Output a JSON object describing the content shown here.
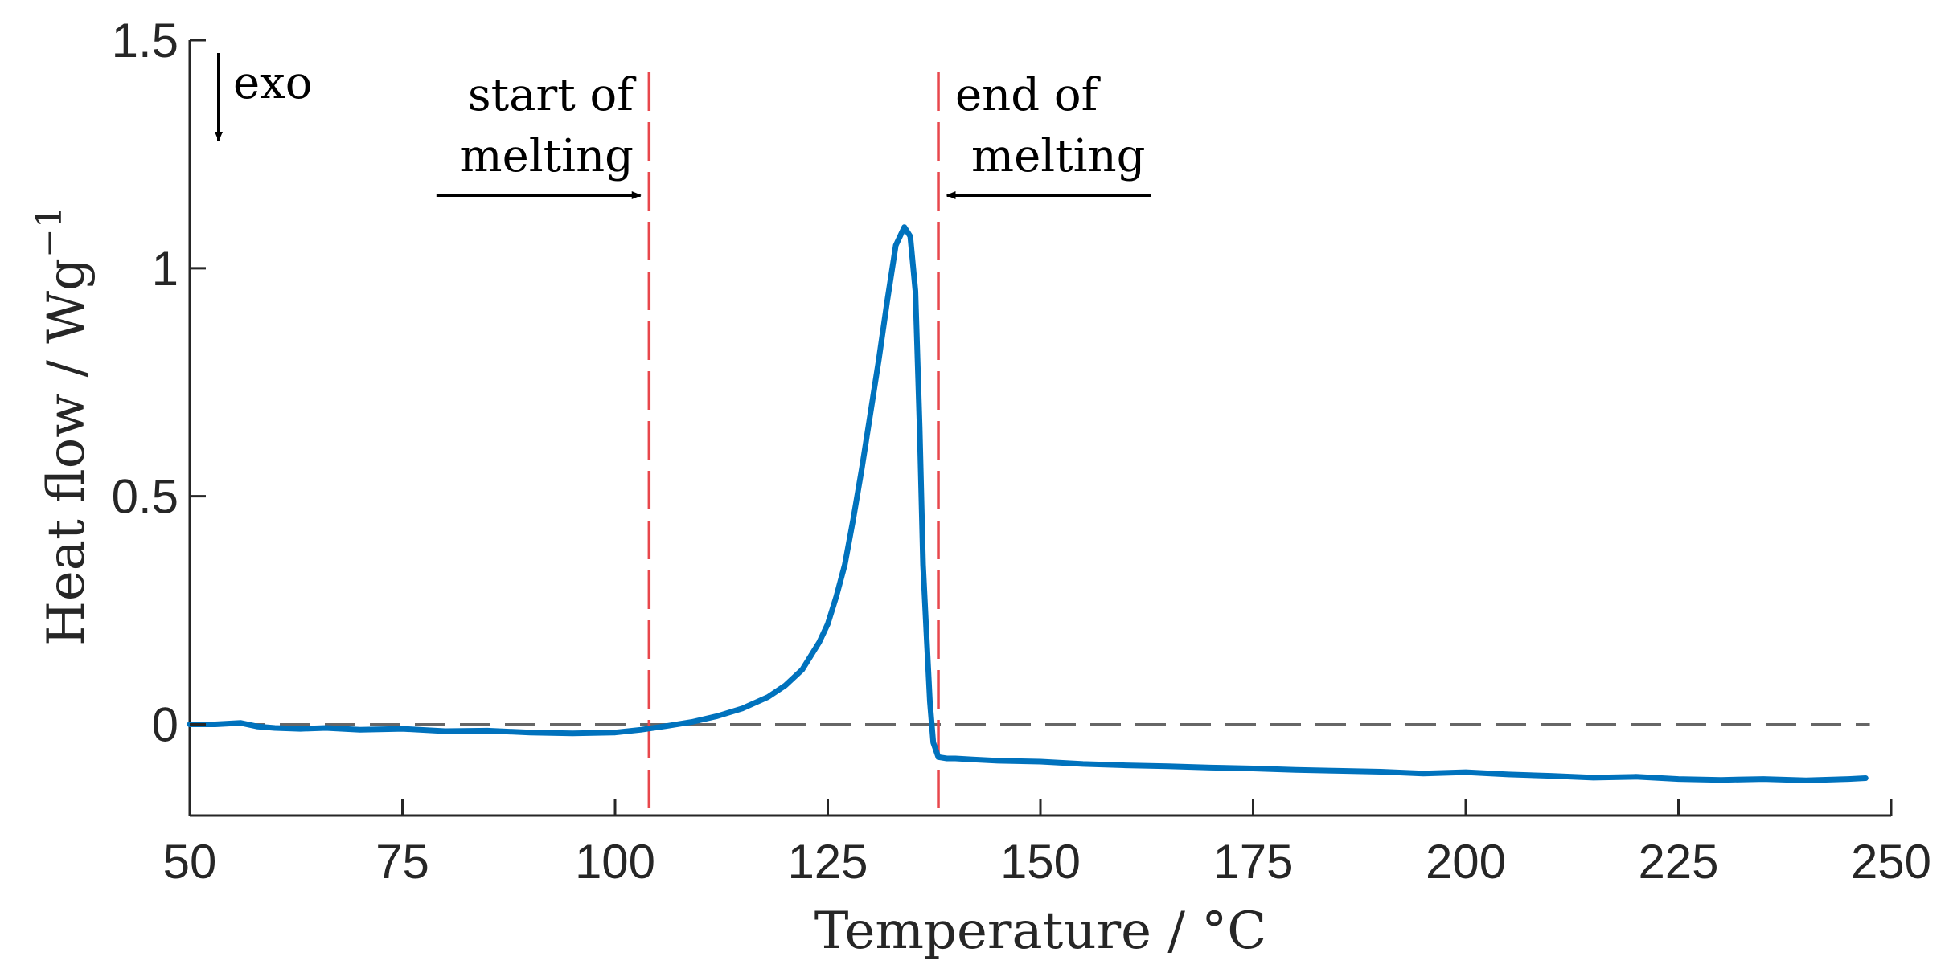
{
  "chart_data": {
    "type": "line",
    "title": "",
    "xlabel": "Temperature / °C",
    "ylabel": "Heat flow / Wg",
    "ylabel_superscript": "−1",
    "xlim": [
      50,
      250
    ],
    "ylim": [
      -0.2,
      1.5
    ],
    "xticks": [
      50,
      75,
      100,
      125,
      150,
      175,
      200,
      225,
      250
    ],
    "xtick_labels": [
      "50",
      "75",
      "100",
      "125",
      "150",
      "175",
      "200",
      "225",
      "250"
    ],
    "yticks": [
      0,
      0.5,
      1,
      1.5
    ],
    "ytick_labels": [
      "0",
      "0.5",
      "1",
      "1.5"
    ],
    "grid": false,
    "reference_line": {
      "y": 0,
      "style": "dashed",
      "color": "#666666"
    },
    "vertical_markers": [
      {
        "x": 104,
        "label_lines": [
          "start of",
          "melting"
        ],
        "arrow_from_x": 79,
        "arrow_to_x": 103,
        "arrow_y": 1.16
      },
      {
        "x": 138,
        "label_lines": [
          "end of",
          "melting"
        ],
        "arrow_from_x": 163,
        "arrow_to_x": 139,
        "arrow_y": 1.16
      }
    ],
    "marker_color": "#e8474c",
    "exo_annotation": {
      "label": "exo",
      "direction": "down"
    },
    "series": [
      {
        "name": "Heat flow",
        "color": "#0072bd",
        "x": [
          50,
          53,
          56,
          58,
          60,
          63,
          66,
          70,
          75,
          80,
          85,
          90,
          95,
          100,
          103,
          106,
          109,
          112,
          115,
          118,
          120,
          122,
          124,
          125,
          126,
          127,
          128,
          129,
          130,
          131,
          132,
          133,
          134,
          134.7,
          135.3,
          135.8,
          136.2,
          136.6,
          137,
          137.4,
          138,
          139,
          140,
          142,
          145,
          150,
          155,
          160,
          165,
          170,
          175,
          180,
          185,
          190,
          195,
          200,
          205,
          210,
          215,
          220,
          225,
          230,
          235,
          240,
          245,
          247
        ],
        "y": [
          0.0,
          0.0,
          0.003,
          -0.005,
          -0.008,
          -0.01,
          -0.008,
          -0.012,
          -0.01,
          -0.015,
          -0.014,
          -0.018,
          -0.02,
          -0.018,
          -0.012,
          -0.004,
          0.005,
          0.018,
          0.035,
          0.06,
          0.085,
          0.12,
          0.18,
          0.22,
          0.28,
          0.35,
          0.45,
          0.56,
          0.68,
          0.8,
          0.93,
          1.05,
          1.09,
          1.07,
          0.95,
          0.65,
          0.35,
          0.2,
          0.05,
          -0.04,
          -0.072,
          -0.075,
          -0.075,
          -0.077,
          -0.08,
          -0.082,
          -0.087,
          -0.09,
          -0.092,
          -0.095,
          -0.097,
          -0.1,
          -0.102,
          -0.104,
          -0.108,
          -0.105,
          -0.11,
          -0.113,
          -0.117,
          -0.115,
          -0.12,
          -0.122,
          -0.12,
          -0.123,
          -0.12,
          -0.118
        ]
      }
    ]
  }
}
